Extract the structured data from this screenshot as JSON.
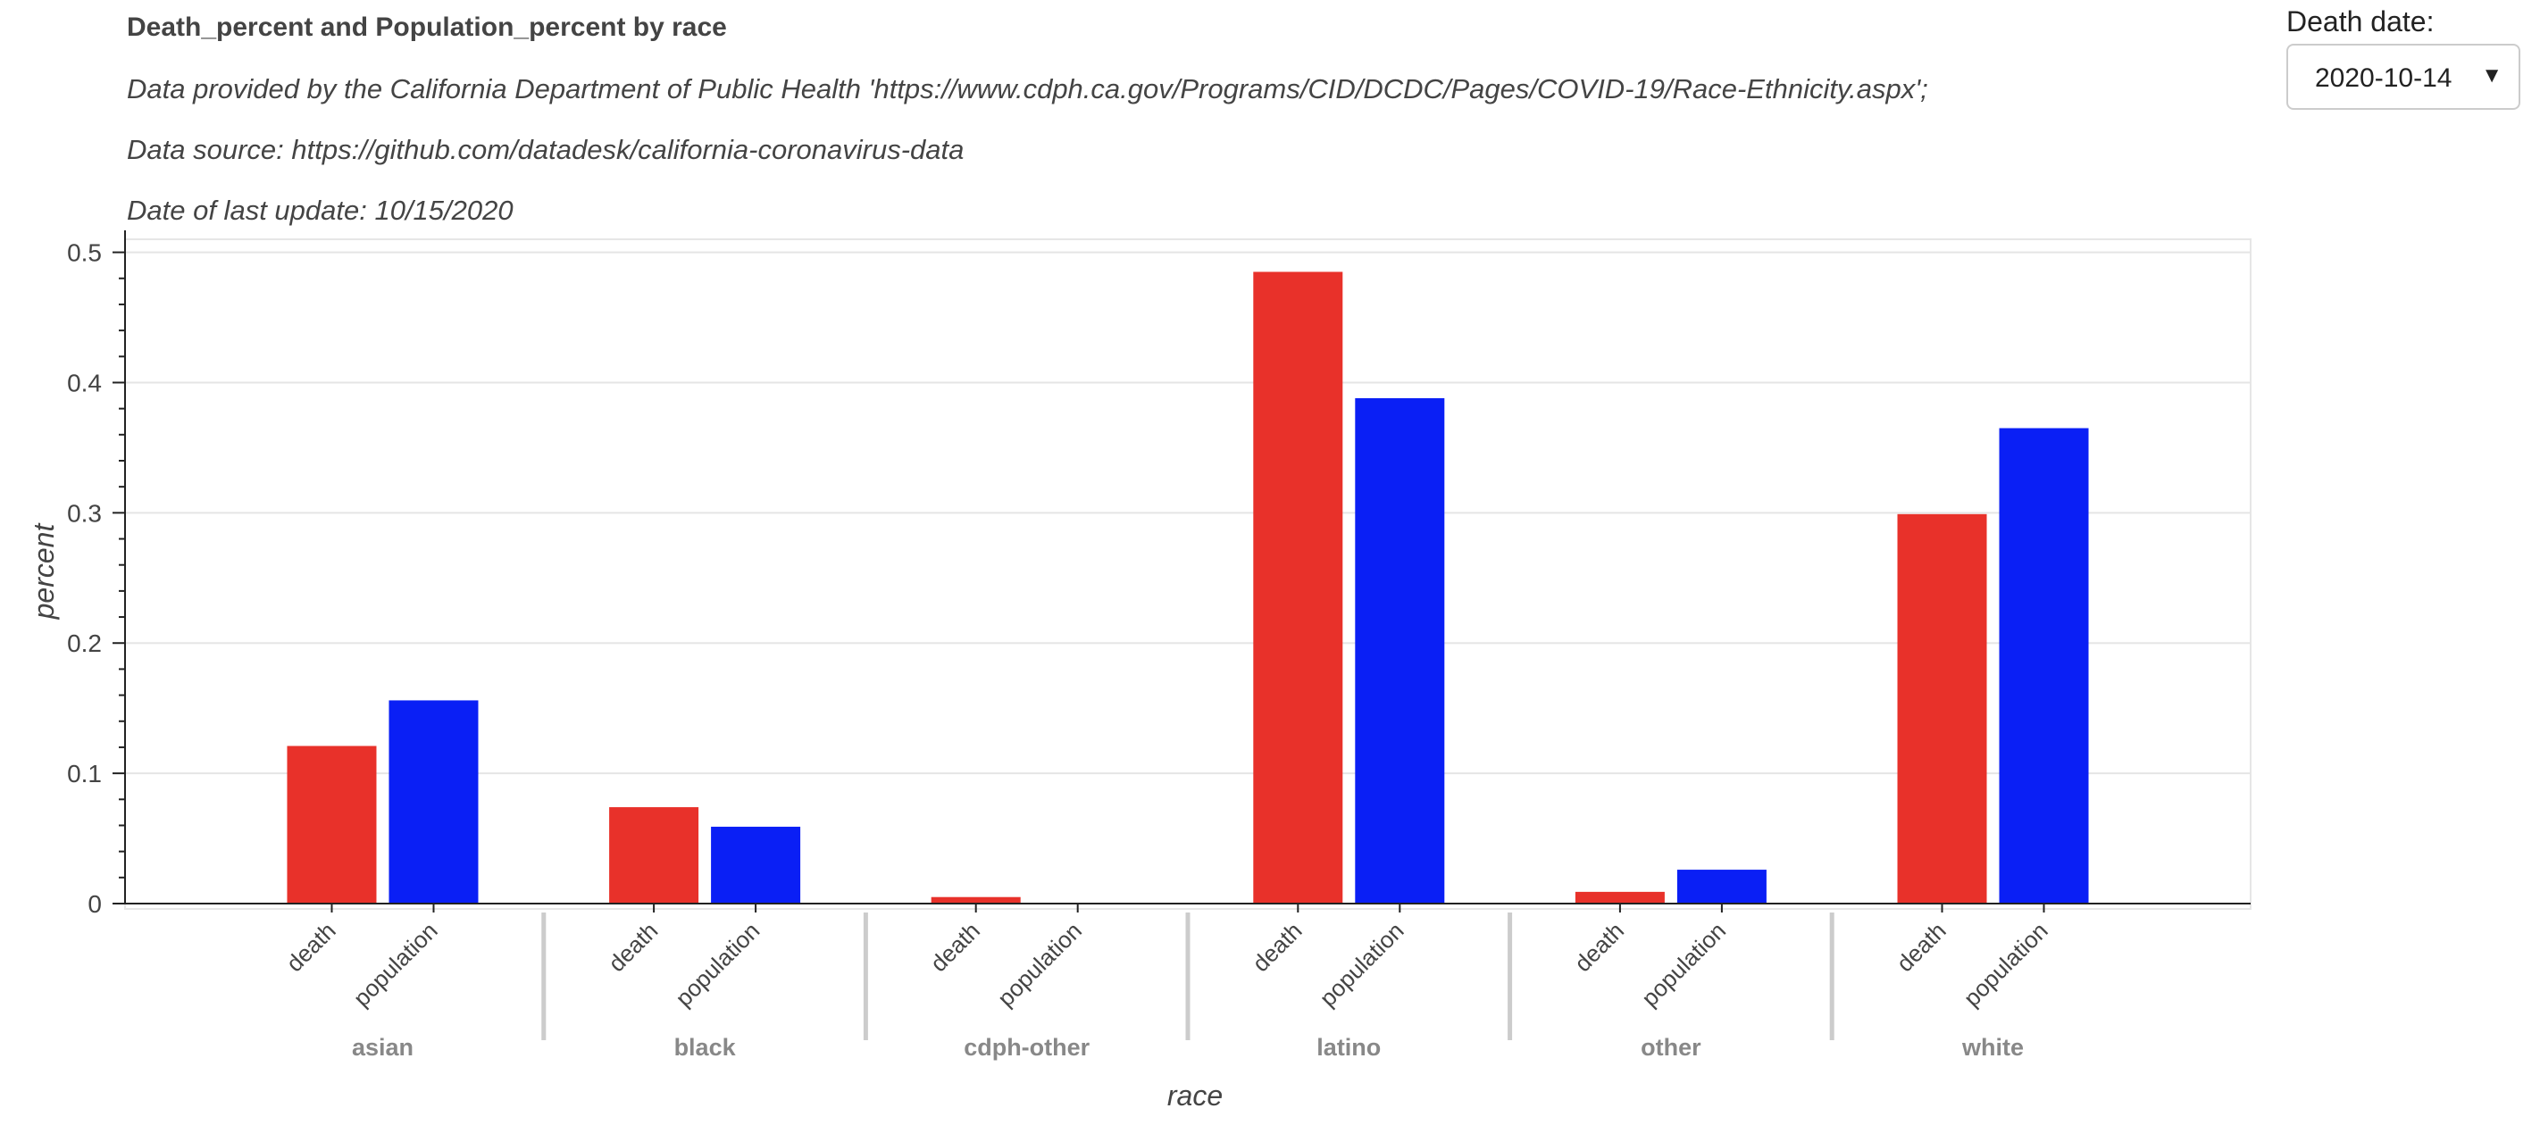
{
  "chart_data": {
    "type": "bar",
    "title": "Death_percent and Population_percent by race",
    "subtitles": [
      "Data provided by the California Department of Public Health 'https://www.cdph.ca.gov/Programs/CID/DCDC/Pages/COVID-19/Race-Ethnicity.aspx';",
      "Data source: https://github.com/datadesk/california-coronavirus-data",
      "Date of last update: 10/15/2020"
    ],
    "xlabel": "race",
    "ylabel": "percent",
    "ylim": [
      0,
      0.51
    ],
    "yticks": [
      0,
      0.1,
      0.2,
      0.3,
      0.4,
      0.5
    ],
    "ytick_labels": [
      "0",
      "0.1",
      "0.2",
      "0.3",
      "0.4",
      "0.5"
    ],
    "grid": true,
    "categories": [
      "asian",
      "black",
      "cdph-other",
      "latino",
      "other",
      "white"
    ],
    "series": [
      {
        "name": "death",
        "color": "#e8312a",
        "values": [
          0.121,
          0.074,
          0.005,
          0.485,
          0.009,
          0.299
        ]
      },
      {
        "name": "population",
        "color": "#0a1ff5",
        "values": [
          0.156,
          0.059,
          0.0,
          0.388,
          0.026,
          0.365
        ]
      }
    ]
  },
  "widget": {
    "label": "Death date:",
    "value": "2020-10-14",
    "caret": "▼",
    "caret_icon": "chevron-down-icon"
  }
}
